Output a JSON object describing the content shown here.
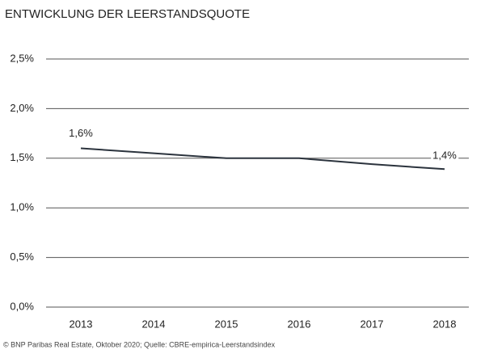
{
  "chart_data": {
    "type": "line",
    "title": "ENTWICKLUNG DER LEERSTANDSQUOTE",
    "source": "© BNP Paribas Real Estate, Oktober 2020; Quelle: CBRE-empirica-Leerstandsindex",
    "categories": [
      "2013",
      "2014",
      "2015",
      "2016",
      "2017",
      "2018"
    ],
    "series": [
      {
        "name": "Leerstandsquote",
        "color": "#2b333d",
        "values": [
          1.6,
          1.55,
          1.5,
          1.5,
          1.44,
          1.39
        ],
        "value_labels": [
          "1,6%",
          null,
          null,
          null,
          null,
          "1,4%"
        ]
      }
    ],
    "ylim": [
      0,
      2.5
    ],
    "yticks": [
      {
        "value": 0,
        "label": "0,0%"
      },
      {
        "value": 0.5,
        "label": "0,5%"
      },
      {
        "value": 1,
        "label": "1,0%"
      },
      {
        "value": 1.5,
        "label": "1,5%"
      },
      {
        "value": 2,
        "label": "2,0%"
      },
      {
        "value": 2.5,
        "label": "2,5%"
      }
    ],
    "grid": true
  }
}
